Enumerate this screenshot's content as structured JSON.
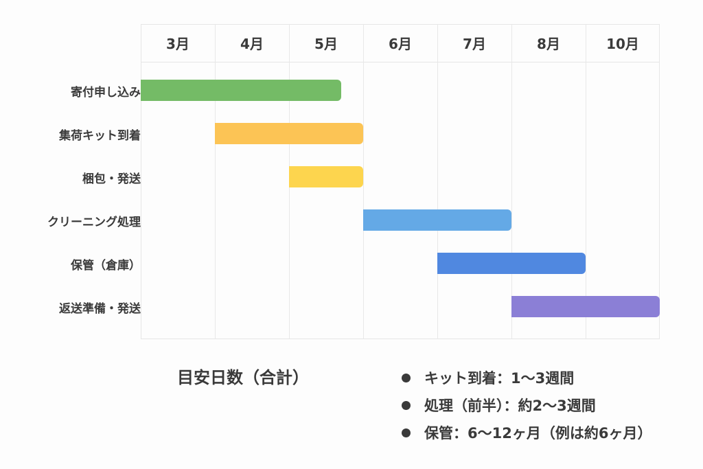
{
  "chart_data": {
    "type": "gantt",
    "title": "",
    "categories": [
      "3月",
      "4月",
      "5月",
      "6月",
      "7月",
      "8月",
      "10月"
    ],
    "tasks": [
      {
        "label": "寄付申し込み",
        "start": 0,
        "end": 2.7,
        "color": "#74bb66"
      },
      {
        "label": "集荷キット到着",
        "start": 1,
        "end": 3,
        "color": "#fcc455"
      },
      {
        "label": "梱包・発送",
        "start": 2,
        "end": 3,
        "color": "#fdd54e"
      },
      {
        "label": "クリーニング処理",
        "start": 3,
        "end": 5,
        "color": "#64a9e6"
      },
      {
        "label": "保管（倉庫）",
        "start": 4,
        "end": 6,
        "color": "#5088e0"
      },
      {
        "label": "返送準備・発送",
        "start": 5,
        "end": 7,
        "color": "#8b7fd6"
      }
    ],
    "xlabel": "",
    "ylabel": "",
    "grid": true
  },
  "summary": {
    "title": "目安日数（合計）",
    "bullets": [
      "キット到着：1〜3週間",
      "処理（前半）：約2〜3週間",
      "保管：6〜12ヶ月（例は約6ヶ月）"
    ]
  }
}
